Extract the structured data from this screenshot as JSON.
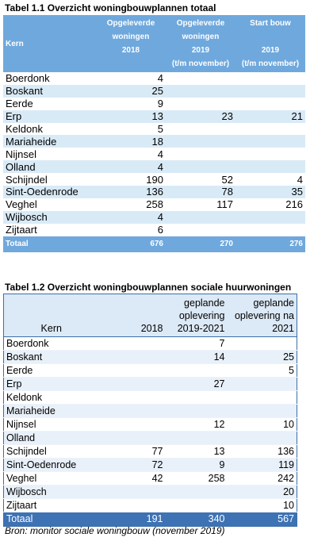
{
  "table1": {
    "caption": "Tabel 1.1 Overzicht woningbouwplannen totaal",
    "headers": {
      "kern": "Kern",
      "col1": [
        "Opgeleverde",
        "woningen",
        "2018"
      ],
      "col2": [
        "Opgeleverde",
        "woningen",
        "2019",
        "(t/m november)"
      ],
      "col3": [
        "Start bouw",
        "",
        "2019",
        "(t/m november)"
      ]
    },
    "rows": [
      [
        "Boerdonk",
        "4",
        "",
        ""
      ],
      [
        "Boskant",
        "25",
        "",
        ""
      ],
      [
        "Eerde",
        "9",
        "",
        ""
      ],
      [
        "Erp",
        "13",
        "23",
        "21"
      ],
      [
        "Keldonk",
        "5",
        "",
        ""
      ],
      [
        "Mariaheide",
        "18",
        "",
        ""
      ],
      [
        "Nijnsel",
        "4",
        "",
        ""
      ],
      [
        "Olland",
        "4",
        "",
        ""
      ],
      [
        "Schijndel",
        "190",
        "52",
        "4"
      ],
      [
        "Sint-Oedenrode",
        "136",
        "78",
        "35"
      ],
      [
        "Veghel",
        "258",
        "117",
        "216"
      ],
      [
        "Wijbosch",
        "4",
        "",
        ""
      ],
      [
        "Zijtaart",
        "6",
        "",
        ""
      ]
    ],
    "total": [
      "Totaal",
      "676",
      "270",
      "276"
    ]
  },
  "table2": {
    "caption": "Tabel 1.2  Overzicht woningbouwplannen sociale huurwoningen",
    "headers": {
      "kern": "Kern",
      "col1": [
        "2018"
      ],
      "col2": [
        "geplande",
        "oplevering",
        "2019-2021"
      ],
      "col3": [
        "geplande",
        "oplevering na",
        "2021"
      ]
    },
    "rows": [
      [
        "Boerdonk",
        "",
        "7",
        ""
      ],
      [
        "Boskant",
        "",
        "14",
        "25"
      ],
      [
        "Eerde",
        "",
        "",
        "5"
      ],
      [
        "Erp",
        "",
        "27",
        ""
      ],
      [
        "Keldonk",
        "",
        "",
        ""
      ],
      [
        "Mariaheide",
        "",
        "",
        ""
      ],
      [
        "Nijnsel",
        "",
        "12",
        "10"
      ],
      [
        "Olland",
        "",
        "",
        ""
      ],
      [
        "Schijndel",
        "77",
        "13",
        "136"
      ],
      [
        "Sint-Oedenrode",
        "72",
        "9",
        "119"
      ],
      [
        "Veghel",
        "42",
        "258",
        "242"
      ],
      [
        "Wijbosch",
        "",
        "",
        "20"
      ],
      [
        "Zijtaart",
        "",
        "",
        "10"
      ]
    ],
    "total": [
      "Totaal",
      "191",
      "340",
      "567"
    ]
  },
  "source": "Bron: monitor sociale woningbouw (november 2019)"
}
